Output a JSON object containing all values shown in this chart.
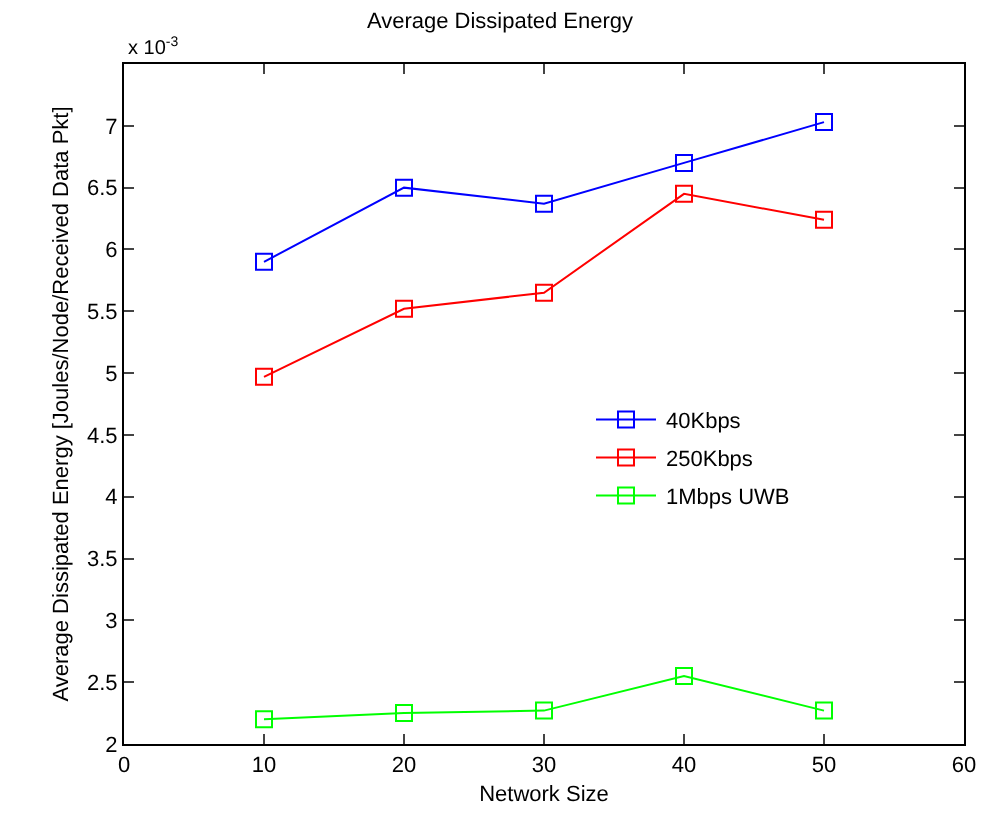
{
  "chart_data": {
    "type": "line",
    "title": "Average Dissipated Energy",
    "xlabel": "Network Size",
    "ylabel": "Average Dissipated Energy [Joules/Node/Received Data Pkt]",
    "annotations": [
      "x 10$^{-3}$"
    ],
    "x": [
      10,
      20,
      30,
      40,
      50
    ],
    "series": [
      {
        "name": "40Kbps",
        "color": "#0000ff",
        "values": [
          5.9,
          6.5,
          6.37,
          6.7,
          7.03
        ]
      },
      {
        "name": "250Kbps",
        "color": "#ff0000",
        "values": [
          4.97,
          5.52,
          5.65,
          6.45,
          6.24
        ]
      },
      {
        "name": "1Mbps UWB",
        "color": "#00ff00",
        "values": [
          2.2,
          2.25,
          2.27,
          2.55,
          2.27
        ]
      }
    ],
    "xlim": [
      0,
      60
    ],
    "xticks": [
      0,
      10,
      20,
      30,
      40,
      50,
      60
    ],
    "ylim": [
      2,
      7.5
    ],
    "yticks": [
      2,
      2.5,
      3,
      3.5,
      4,
      4.5,
      5,
      5.5,
      6,
      6.5,
      7
    ],
    "legend": "right",
    "marker": "square",
    "line_style": "solid"
  }
}
